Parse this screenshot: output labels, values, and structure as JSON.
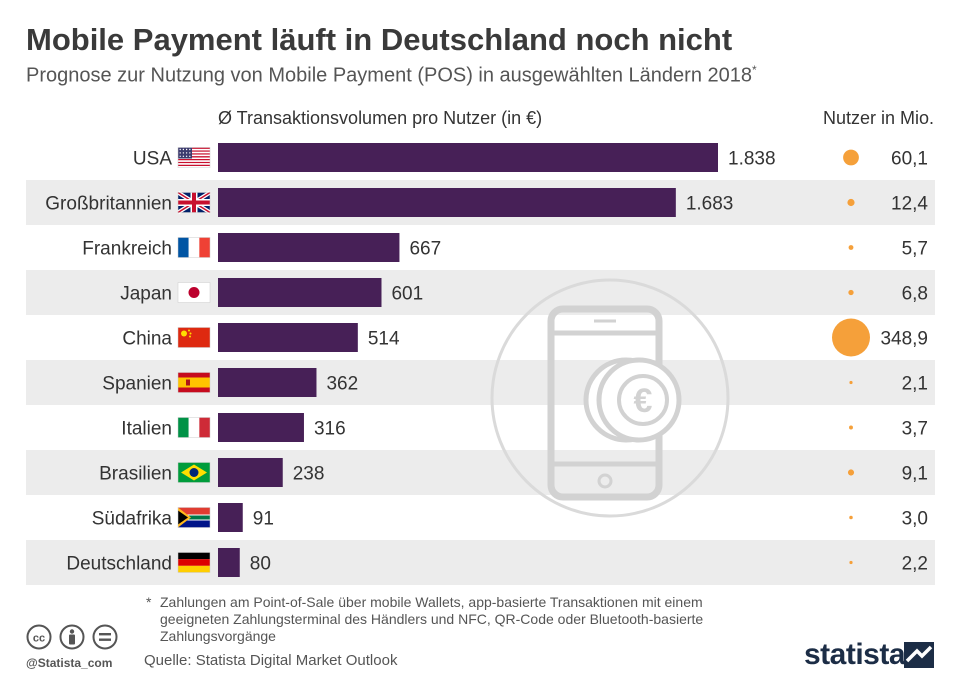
{
  "header": {
    "title": "Mobile Payment läuft in Deutschland noch nicht",
    "subtitle": "Prognose zur Nutzung von Mobile Payment (POS) in ausgewählten Ländern 2018",
    "subtitle_marker": "*"
  },
  "chart_data": {
    "type": "bar",
    "orientation": "horizontal",
    "xlabel": "Ø Transaktionsvolumen pro Nutzer (in €)",
    "secondary_label": "Nutzer in Mio.",
    "categories": [
      "USA",
      "Großbritannien",
      "Frankreich",
      "Japan",
      "China",
      "Spanien",
      "Italien",
      "Brasilien",
      "Südafrika",
      "Deutschland"
    ],
    "values": [
      1838,
      1683,
      667,
      601,
      514,
      362,
      316,
      238,
      91,
      80
    ],
    "value_labels": [
      "1.838",
      "1.683",
      "667",
      "601",
      "514",
      "362",
      "316",
      "238",
      "91",
      "80"
    ],
    "users_mio": [
      60.1,
      12.4,
      5.7,
      6.8,
      348.9,
      2.1,
      3.7,
      9.1,
      3.0,
      2.2
    ],
    "users_labels": [
      "60,1",
      "12,4",
      "5,7",
      "6,8",
      "348,9",
      "2,1",
      "3,7",
      "9,1",
      "3,0",
      "2,2"
    ],
    "flags": [
      "us-flag-icon",
      "uk-flag-icon",
      "france-flag-icon",
      "japan-flag-icon",
      "china-flag-icon",
      "spain-flag-icon",
      "italy-flag-icon",
      "brazil-flag-icon",
      "south-africa-flag-icon",
      "germany-flag-icon"
    ],
    "xlim": [
      0,
      1838
    ],
    "grid": false,
    "colors": {
      "bar": "#472057",
      "bubble": "#f5a03a",
      "row_stripe": "#ececec"
    }
  },
  "footer": {
    "footnote_marker": "*",
    "footnote": "Zahlungen am Point-of-Sale über mobile Wallets, app-basierte Transaktionen mit einem geeigneten Zahlungsterminal des Händlers und NFC, QR-Code oder Bluetooth-basierte Zahlungsvorgänge",
    "source": "Quelle: Statista Digital Market Outlook",
    "handle": "@Statista_com",
    "brand": "statista",
    "license_icons": [
      "cc-icon",
      "attribution-icon",
      "no-derivatives-icon"
    ],
    "background_icon": "smartphone-euro-coin-icon"
  }
}
